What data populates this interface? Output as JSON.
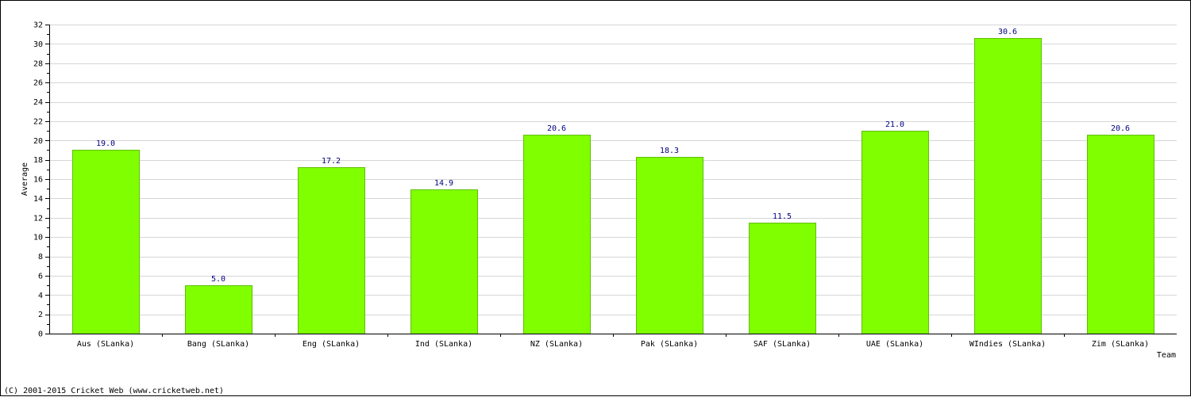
{
  "chart_data": {
    "type": "bar",
    "title": "",
    "xlabel": "Team",
    "ylabel": "Average",
    "ylim": [
      0,
      32
    ],
    "yticks": [
      0,
      2,
      4,
      6,
      8,
      10,
      12,
      14,
      16,
      18,
      20,
      22,
      24,
      26,
      28,
      30,
      32
    ],
    "grid": true,
    "categories": [
      "Aus (SLanka)",
      "Bang (SLanka)",
      "Eng (SLanka)",
      "Ind (SLanka)",
      "NZ (SLanka)",
      "Pak (SLanka)",
      "SAF (SLanka)",
      "UAE (SLanka)",
      "WIndies (SLanka)",
      "Zim (SLanka)"
    ],
    "values": [
      19.0,
      5.0,
      17.2,
      14.9,
      20.6,
      18.3,
      11.5,
      21.0,
      30.6,
      20.6
    ],
    "value_labels": [
      "19.0",
      "5.0",
      "17.2",
      "14.9",
      "20.6",
      "18.3",
      "11.5",
      "21.0",
      "30.6",
      "20.6"
    ],
    "bar_color": "#80ff00",
    "value_label_color": "#000080"
  },
  "footer": {
    "copyright": "(C) 2001-2015 Cricket Web (www.cricketweb.net)"
  }
}
